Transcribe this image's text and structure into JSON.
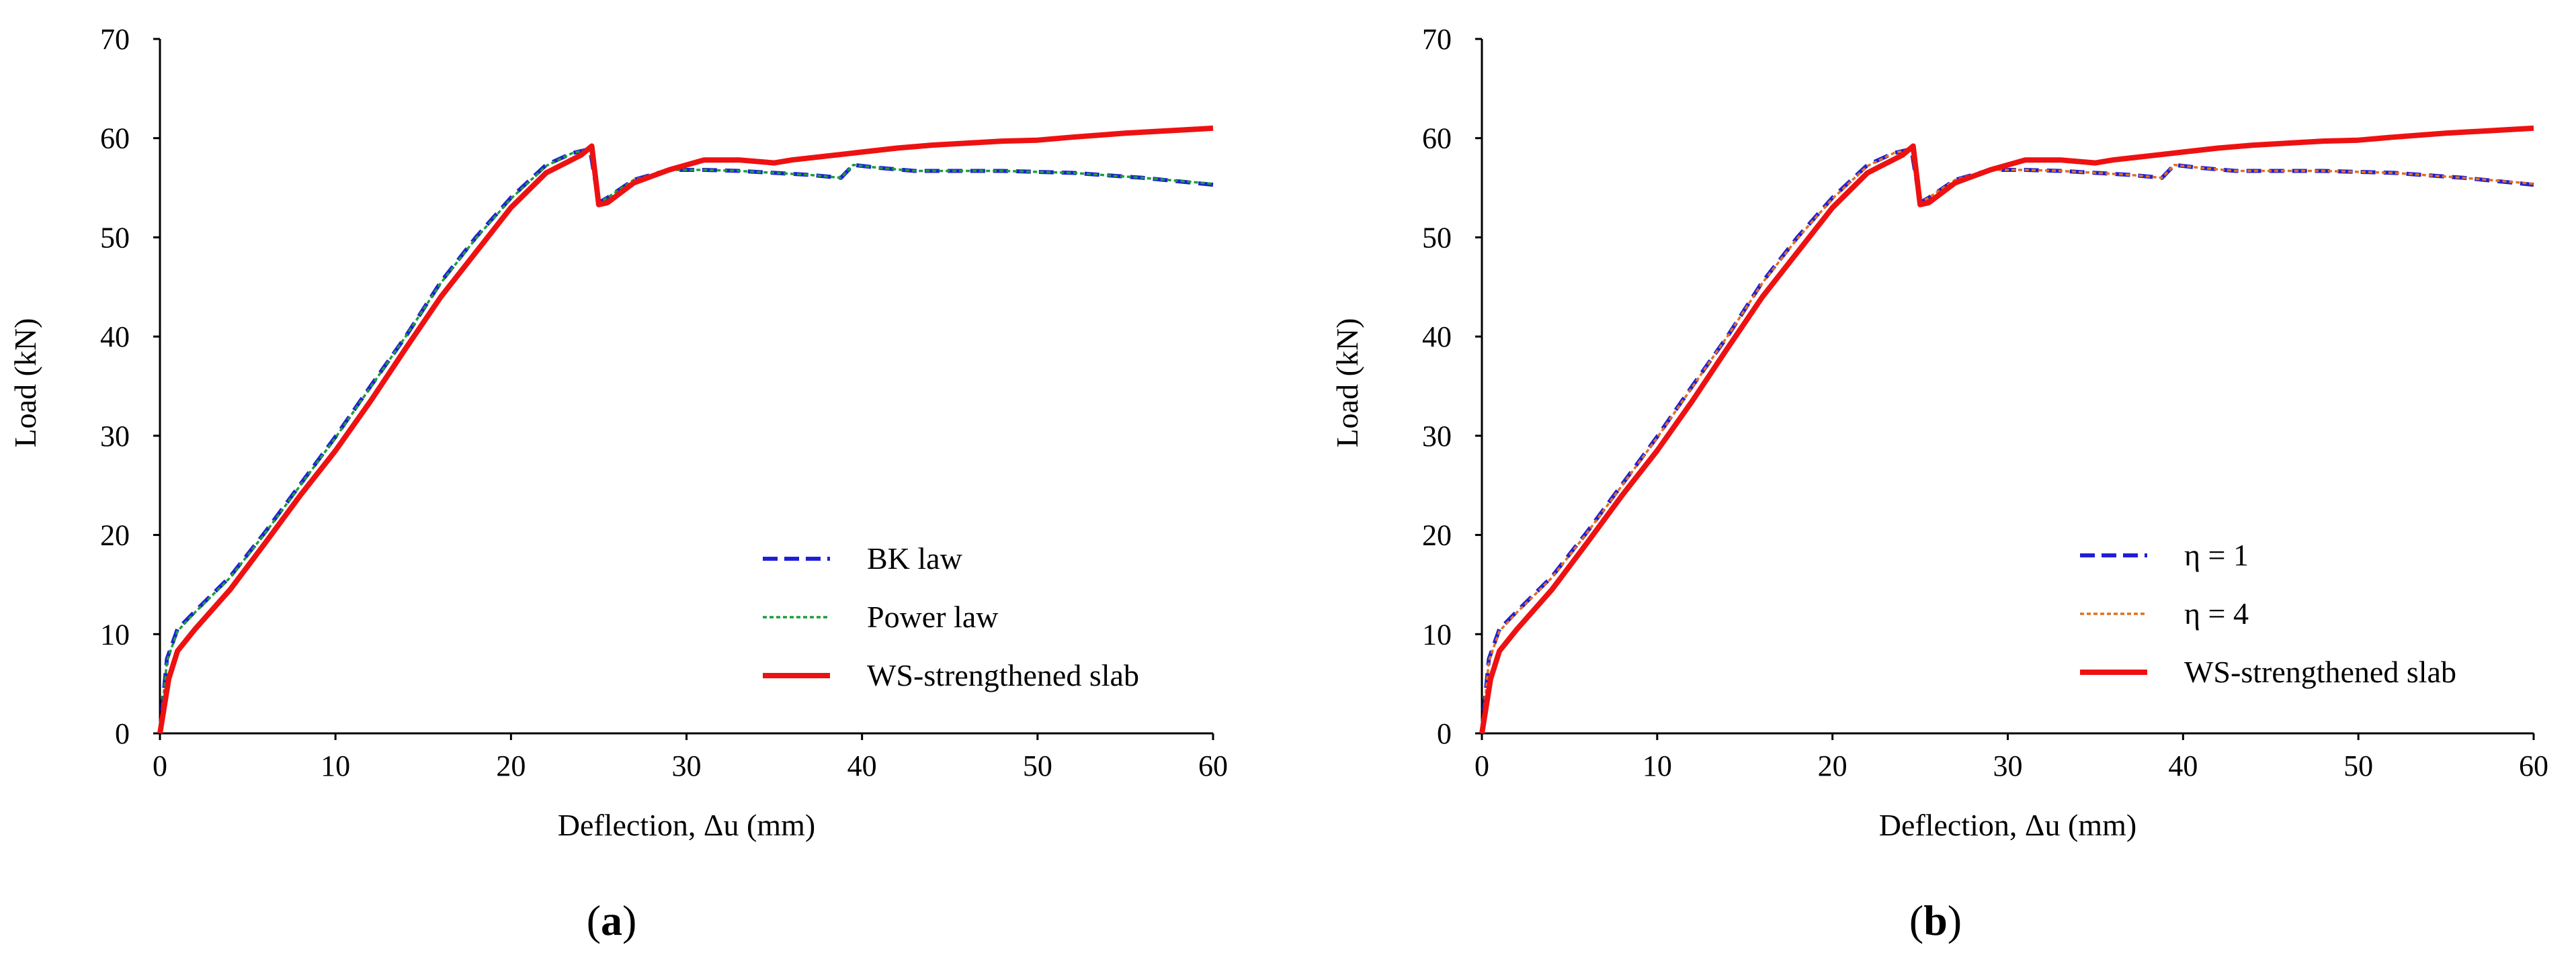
{
  "chart_data": [
    {
      "type": "line",
      "panel_label": "a",
      "xlabel": "Deflection, Δu (mm)",
      "ylabel": "Load (kN)",
      "xlim": [
        0,
        60
      ],
      "ylim": [
        0,
        70
      ],
      "xticks": [
        0,
        10,
        20,
        30,
        40,
        50,
        60
      ],
      "yticks": [
        0,
        10,
        20,
        30,
        40,
        50,
        60,
        70
      ],
      "legend_position": "bottom-right",
      "series": [
        {
          "name": "BK law",
          "color": "#1f1fd6",
          "style": "dashed",
          "x": [
            0,
            0.4,
            1,
            2,
            4,
            6,
            8,
            10,
            12,
            14,
            16,
            18,
            20,
            22,
            23.5,
            24.5,
            25,
            25.5,
            27,
            29,
            31,
            33,
            35,
            37,
            38.8,
            39.5,
            41,
            43,
            45,
            48,
            52,
            56,
            60
          ],
          "y": [
            0,
            7.5,
            10.5,
            12.3,
            15.8,
            20.3,
            25.1,
            29.9,
            35.0,
            40.0,
            45.5,
            50.0,
            54.0,
            57.3,
            58.5,
            58.9,
            53.5,
            54.0,
            55.8,
            56.8,
            56.8,
            56.7,
            56.5,
            56.3,
            56.0,
            57.3,
            57.0,
            56.7,
            56.7,
            56.7,
            56.5,
            56.0,
            55.3
          ]
        },
        {
          "name": "Power law",
          "color": "#1a9e3a",
          "style": "dotted",
          "x": [
            0,
            0.4,
            1,
            2,
            4,
            6,
            8,
            10,
            12,
            14,
            16,
            18,
            20,
            22,
            23.5,
            24.5,
            25,
            25.5,
            27,
            29,
            31,
            33,
            35,
            37,
            38.8,
            39.5,
            41,
            43,
            45,
            48,
            52,
            56,
            60
          ],
          "y": [
            0,
            7.3,
            10.3,
            12.2,
            15.7,
            20.2,
            25.0,
            29.8,
            34.9,
            40.0,
            45.4,
            49.9,
            53.9,
            57.2,
            58.5,
            58.9,
            53.5,
            54.0,
            55.8,
            56.8,
            56.8,
            56.7,
            56.5,
            56.3,
            56.0,
            57.3,
            57.0,
            56.7,
            56.7,
            56.7,
            56.5,
            56.0,
            55.4
          ]
        },
        {
          "name": "WS-strengthened slab",
          "color": "#ee1111",
          "style": "solid",
          "x": [
            0,
            0.5,
            1,
            2,
            4,
            6,
            8,
            10,
            12,
            14,
            16,
            18,
            20,
            22,
            24,
            24.6,
            25,
            25.5,
            27,
            29,
            31,
            33,
            35,
            36,
            38,
            40,
            42,
            44,
            46,
            48,
            50,
            52,
            55,
            58,
            60
          ],
          "y": [
            0,
            5.5,
            8.3,
            10.5,
            14.5,
            19.2,
            24.0,
            28.5,
            33.5,
            38.8,
            44.0,
            48.5,
            53.0,
            56.5,
            58.3,
            59.2,
            53.3,
            53.5,
            55.5,
            56.8,
            57.8,
            57.8,
            57.5,
            57.8,
            58.2,
            58.6,
            59.0,
            59.3,
            59.5,
            59.7,
            59.8,
            60.1,
            60.5,
            60.8,
            61.0
          ]
        }
      ]
    },
    {
      "type": "line",
      "panel_label": "b",
      "xlabel": "Deflection, Δu (mm)",
      "ylabel": "Load (kN)",
      "xlim": [
        0,
        60
      ],
      "ylim": [
        0,
        70
      ],
      "xticks": [
        0,
        10,
        20,
        30,
        40,
        50,
        60
      ],
      "yticks": [
        0,
        10,
        20,
        30,
        40,
        50,
        60,
        70
      ],
      "legend_position": "bottom-right",
      "series": [
        {
          "name": "η = 1",
          "color": "#1f1fd6",
          "style": "dashed",
          "x": [
            0,
            0.4,
            1,
            2,
            4,
            6,
            8,
            10,
            12,
            14,
            16,
            18,
            20,
            22,
            23.5,
            24.5,
            25,
            25.5,
            27,
            29,
            31,
            33,
            35,
            37,
            38.8,
            39.5,
            41,
            43,
            45,
            48,
            52,
            56,
            60
          ],
          "y": [
            0,
            7.5,
            10.5,
            12.3,
            15.8,
            20.3,
            25.1,
            29.9,
            35.0,
            40.0,
            45.5,
            50.0,
            54.0,
            57.3,
            58.5,
            58.9,
            53.5,
            54.0,
            55.8,
            56.8,
            56.8,
            56.7,
            56.5,
            56.3,
            56.0,
            57.3,
            57.0,
            56.7,
            56.7,
            56.7,
            56.5,
            56.0,
            55.3
          ]
        },
        {
          "name": "η = 4",
          "color": "#e07020",
          "style": "dotted",
          "x": [
            0,
            0.4,
            1,
            2,
            4,
            6,
            8,
            10,
            12,
            14,
            16,
            18,
            20,
            22,
            23.5,
            24.5,
            25,
            25.5,
            27,
            29,
            31,
            33,
            35,
            37,
            38.8,
            39.5,
            41,
            43,
            45,
            48,
            52,
            56,
            60
          ],
          "y": [
            0,
            7.3,
            10.3,
            12.2,
            15.7,
            20.2,
            25.0,
            29.8,
            34.9,
            40.0,
            45.4,
            49.9,
            53.9,
            57.2,
            58.5,
            58.9,
            53.5,
            54.0,
            55.8,
            56.8,
            56.8,
            56.7,
            56.5,
            56.3,
            56.0,
            57.3,
            57.0,
            56.7,
            56.7,
            56.7,
            56.5,
            56.0,
            55.4
          ]
        },
        {
          "name": "WS-strengthened slab",
          "color": "#ee1111",
          "style": "solid",
          "x": [
            0,
            0.5,
            1,
            2,
            4,
            6,
            8,
            10,
            12,
            14,
            16,
            18,
            20,
            22,
            24,
            24.6,
            25,
            25.5,
            27,
            29,
            31,
            33,
            35,
            36,
            38,
            40,
            42,
            44,
            46,
            48,
            50,
            52,
            55,
            58,
            60
          ],
          "y": [
            0,
            5.5,
            8.3,
            10.5,
            14.5,
            19.2,
            24.0,
            28.5,
            33.5,
            38.8,
            44.0,
            48.5,
            53.0,
            56.5,
            58.3,
            59.2,
            53.3,
            53.5,
            55.5,
            56.8,
            57.8,
            57.8,
            57.5,
            57.8,
            58.2,
            58.6,
            59.0,
            59.3,
            59.5,
            59.7,
            59.8,
            60.1,
            60.5,
            60.8,
            61.0
          ]
        }
      ]
    }
  ]
}
